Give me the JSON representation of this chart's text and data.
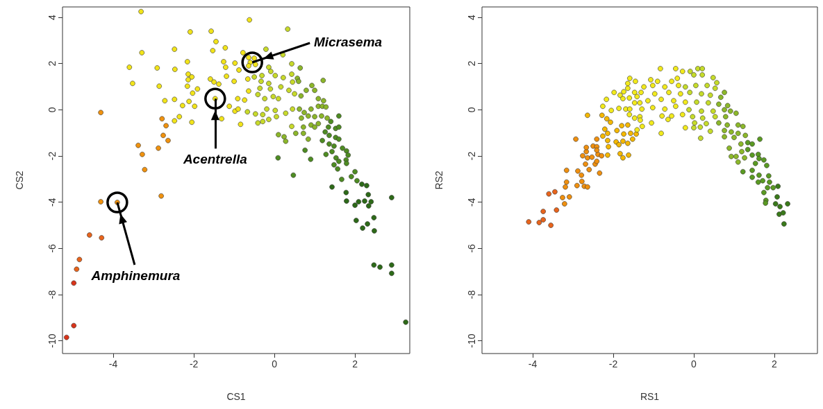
{
  "chart_data": [
    {
      "type": "scatter",
      "xlabel": "CS1",
      "ylabel": "CS2",
      "xlim": [
        -5.26,
        3.36
      ],
      "ylim": [
        -10.55,
        4.45
      ],
      "xticks": [
        -4,
        -2,
        0,
        2
      ],
      "yticks": [
        -10,
        -8,
        -6,
        -4,
        -2,
        0,
        2,
        4
      ],
      "grid": false,
      "marker": "circle",
      "annotations": [
        {
          "text": "Micrasema",
          "x": -0.55,
          "y": 2.05
        },
        {
          "text": "Acentrella",
          "x": -1.47,
          "y": 0.48
        },
        {
          "text": "Amphinemura",
          "x": -3.9,
          "y": -4.01
        }
      ],
      "series": [
        {
          "color": "#d9341a",
          "x": [
            -4.98,
            -5.16,
            -4.98
          ],
          "values": [
            -9.34,
            -9.85,
            -7.5
          ]
        },
        {
          "color": "#e8641c",
          "x": [
            -4.59,
            -4.29,
            -4.84,
            -4.91
          ],
          "values": [
            -5.42,
            -5.54,
            -6.48,
            -6.9
          ]
        },
        {
          "color": "#f0920f",
          "x": [
            -2.81,
            -4.31,
            -3.9,
            -4.31,
            -3.22,
            -3.28,
            -2.88,
            -3.38,
            -2.64,
            -2.76,
            -2.69,
            -2.79
          ],
          "values": [
            -3.73,
            -3.98,
            -4.01,
            -0.12,
            -2.59,
            -1.93,
            -1.66,
            -1.54,
            -1.33,
            -1.11,
            -0.69,
            -0.39
          ]
        },
        {
          "color": "#f2e41a",
          "x": [
            -3.31,
            -2.09,
            -1.57,
            -1.45,
            -2.48,
            -1.53,
            -1.22,
            -3.29,
            -3.6,
            -2.91,
            -2.47,
            -2.16,
            -1.26,
            -1.21,
            -0.98,
            -3.52,
            -2.86,
            -2.14,
            -2.05,
            -2.14,
            -2.16,
            -1.91,
            -1.59,
            -1.5,
            -1.38,
            -1.19,
            -1.0,
            -2.03,
            -2.72,
            -2.48,
            -2.12,
            -2.28,
            -1.98,
            -1.47,
            -1.12,
            -0.98,
            -1.31,
            -2.36,
            -2.48,
            -2.05,
            -0.62,
            -0.78,
            -0.64,
            -0.5,
            -0.6,
            -0.47,
            -0.64,
            -0.88,
            -0.66,
            -0.64,
            -0.91,
            -0.74,
            -0.9,
            -0.84
          ],
          "values": [
            4.25,
            3.37,
            3.4,
            2.95,
            2.62,
            2.56,
            2.68,
            2.47,
            1.84,
            1.81,
            1.75,
            2.08,
            2.08,
            1.84,
            2.02,
            1.14,
            1.02,
            1.54,
            1.42,
            1.3,
            1.02,
            0.9,
            1.33,
            1.2,
            1.11,
            1.45,
            1.23,
            0.72,
            0.39,
            0.45,
            0.36,
            0.18,
            0.15,
            0.48,
            0.15,
            -0.06,
            -0.39,
            -0.3,
            -0.48,
            -0.54,
            3.89,
            2.47,
            2.26,
            2.23,
            2.05,
            1.96,
            1.9,
            1.72,
            1.33,
            0.81,
            0.48,
            0.42,
            0.03,
            -0.63
          ]
        },
        {
          "color": "#c8da2a",
          "x": [
            0.33,
            -0.21,
            0.21,
            -0.14,
            0.43,
            -0.09,
            0.02,
            -0.31,
            -0.5,
            0.43,
            0.22,
            -0.33,
            -0.14,
            0.16,
            0.45,
            -0.36,
            -0.1,
            -0.41,
            -0.24,
            -0.03,
            0.1,
            0.36,
            0.5,
            -0.67,
            -0.47,
            -0.29,
            -0.19,
            0.02,
            0.28,
            0.45,
            -0.41,
            -0.29,
            -0.14,
            0.05,
            0.43
          ],
          "values": [
            3.49,
            2.62,
            2.38,
            1.84,
            1.99,
            1.66,
            1.48,
            1.48,
            1.42,
            1.54,
            1.39,
            1.23,
            1.14,
            0.99,
            1.2,
            0.93,
            0.9,
            0.66,
            0.48,
            0.57,
            0.48,
            0.84,
            0.69,
            -0.09,
            -0.18,
            -0.21,
            0.03,
            -0.03,
            -0.15,
            0.03,
            -0.57,
            -0.51,
            -0.42,
            -0.3,
            -0.72
          ]
        },
        {
          "color": "#8cb62a",
          "x": [
            0.64,
            1.21,
            0.57,
            0.6,
            0.93,
            0.66,
            0.79,
            1.0,
            1.09,
            1.22,
            0.62,
            0.74,
            0.91,
            1.09,
            1.19,
            1.28,
            0.84,
            1.0,
            0.67,
            1.17,
            1.31,
            1.09,
            0.91,
            1.0,
            0.72,
            0.53,
            0.72,
            0.84,
            0.1,
            0.24,
            0.28
          ],
          "values": [
            1.81,
            1.27,
            1.36,
            1.23,
            1.05,
            0.6,
            0.84,
            0.84,
            0.48,
            0.39,
            0.03,
            -0.12,
            0.03,
            0.15,
            0.15,
            0.12,
            -0.27,
            -0.3,
            -0.36,
            -0.27,
            -0.36,
            -0.6,
            -0.66,
            -0.75,
            -0.75,
            -1.02,
            -1.02,
            -1.27,
            -1.08,
            -1.17,
            -1.36
          ]
        },
        {
          "color": "#4e8c22",
          "x": [
            1.4,
            1.6,
            1.34,
            1.52,
            1.6,
            1.26,
            1.36,
            1.52,
            1.6,
            1.19,
            1.36,
            1.48,
            1.69,
            1.79,
            1.83,
            1.28,
            1.43,
            1.53,
            1.6,
            1.78,
            1.79,
            1.48,
            1.57,
            0.76,
            0.9,
            0.09,
            0.47,
            2.0,
            1.91,
            2.05,
            1.67
          ],
          "values": [
            -0.51,
            -0.27,
            -0.75,
            -0.81,
            -0.75,
            -0.96,
            -1.11,
            -1.2,
            -1.27,
            -1.33,
            -1.48,
            -1.57,
            -1.66,
            -1.78,
            -1.96,
            -1.93,
            -1.81,
            -2.08,
            -2.23,
            -2.17,
            -2.32,
            -2.38,
            -2.56,
            -1.75,
            -2.14,
            -2.08,
            -2.83,
            -2.68,
            -2.89,
            -3.07,
            -3.01
          ]
        },
        {
          "color": "#2d6a18",
          "x": [
            2.17,
            2.29,
            1.43,
            1.78,
            1.79,
            2.0,
            2.09,
            2.24,
            2.34,
            2.4,
            2.33,
            2.91,
            2.03,
            2.47,
            2.31,
            2.19,
            2.48,
            2.47,
            2.62,
            2.91,
            2.91,
            3.26
          ],
          "values": [
            -3.22,
            -3.28,
            -3.34,
            -3.58,
            -3.95,
            -4.13,
            -3.98,
            -3.95,
            -4.16,
            -3.98,
            -3.67,
            -3.8,
            -4.79,
            -4.67,
            -4.94,
            -5.12,
            -5.24,
            -6.72,
            -6.81,
            -6.72,
            -7.08,
            -9.19
          ]
        }
      ]
    },
    {
      "type": "scatter",
      "xlabel": "RS1",
      "ylabel": "RS2",
      "xlim": [
        -5.26,
        3.07
      ],
      "ylim": [
        -10.55,
        4.45
      ],
      "xticks": [
        -4,
        -2,
        0,
        2
      ],
      "yticks": [
        -10,
        -8,
        -6,
        -4,
        -2,
        0,
        2,
        4
      ],
      "grid": false,
      "marker": "circle",
      "series": [
        {
          "color": "#e8641c",
          "x": [
            -4.1,
            -3.84,
            -3.74,
            -3.55,
            -3.74,
            -3.41,
            -3.6,
            -3.45
          ],
          "values": [
            -4.85,
            -4.88,
            -4.76,
            -5.0,
            -4.4,
            -4.34,
            -3.64,
            -3.55
          ]
        },
        {
          "color": "#f0900f",
          "x": [
            -3.26,
            -3.09,
            -3.21,
            -3.19,
            -3.16,
            -2.9,
            -2.78,
            -2.72,
            -2.64,
            -3.16,
            -2.88,
            -2.79,
            -2.6,
            -2.34,
            -2.69,
            -2.45,
            -2.41,
            -2.76,
            -2.64,
            -2.53,
            -2.38,
            -2.29,
            -2.67,
            -2.67,
            -2.5,
            -2.41,
            -2.41,
            -2.93,
            -2.41
          ],
          "values": [
            -3.8,
            -3.77,
            -4.07,
            -3.34,
            -3.13,
            -3.28,
            -3.1,
            -3.31,
            -3.34,
            -2.62,
            -2.65,
            -2.83,
            -2.59,
            -2.74,
            -2.35,
            -2.35,
            -2.23,
            -1.99,
            -2.08,
            -2.05,
            -1.93,
            -1.99,
            -1.81,
            -1.63,
            -1.57,
            -1.6,
            -1.75,
            -1.27,
            -1.27
          ]
        },
        {
          "color": "#f5b800",
          "x": [
            -2.26,
            -2.14,
            -2.12,
            -2.14,
            -2.21,
            -2.14,
            -1.91,
            -1.93,
            -1.86,
            -1.76,
            -1.64,
            -1.83,
            -1.76,
            -1.62,
            -1.52,
            -1.74,
            -1.64,
            -1.57,
            -1.43,
            -1.79,
            -2.64,
            -2.28,
            -2.16,
            -2.07
          ],
          "values": [
            -1.14,
            -1.33,
            -1.6,
            -1.96,
            -0.84,
            -1.02,
            -0.9,
            -1.39,
            -1.51,
            -1.36,
            -1.45,
            -1.9,
            -2.08,
            -1.96,
            -1.27,
            -1.05,
            -0.66,
            -1.02,
            -1.05,
            -0.69,
            -0.24,
            -0.24,
            -0.39,
            -0.54
          ]
        },
        {
          "color": "#f2ea1c",
          "x": [
            -2.26,
            -2.17,
            -2.05,
            -1.98,
            -1.86,
            -1.83,
            -1.76,
            -1.74,
            -1.64,
            -1.59,
            -1.64,
            -1.45,
            -1.47,
            -1.6,
            -1.41,
            -1.69,
            -1.59,
            -1.47,
            -1.34,
            -1.29,
            -1.6,
            -1.47,
            -1.34,
            -1.33,
            -1.28,
            -1.41,
            -0.83,
            -0.45,
            -0.28,
            -0.41,
            -0.55,
            -0.9,
            -1.07,
            -1.24,
            -1.02,
            -0.72,
            -0.38,
            -1.31,
            -0.97,
            -0.62,
            -0.33,
            -1.14,
            -0.81,
            -0.5,
            -0.21,
            -1.02,
            -0.72,
            -0.45,
            -0.79,
            -0.55,
            -0.28,
            -1.05,
            -0.64,
            -0.81,
            -0.21
          ],
          "values": [
            0.15,
            0.45,
            -0.03,
            0.75,
            0.06,
            0.63,
            0.48,
            0.78,
            0.93,
            1.36,
            1.14,
            1.23,
            0.75,
            0.51,
            0.57,
            0.03,
            0.03,
            0.3,
            0.3,
            0.03,
            -0.21,
            -0.36,
            -0.3,
            -0.45,
            -0.72,
            -0.87,
            1.78,
            1.78,
            1.66,
            1.36,
            1.23,
            1.23,
            1.3,
            0.99,
            1.05,
            0.99,
            1.05,
            0.75,
            0.69,
            0.75,
            0.69,
            0.39,
            0.45,
            0.39,
            0.33,
            0.09,
            0.03,
            0.15,
            -0.27,
            -0.27,
            -0.21,
            -0.57,
            -0.42,
            -1.02,
            -0.78
          ]
        },
        {
          "color": "#c6dc2a",
          "x": [
            -0.09,
            0.1,
            0.21,
            0.21,
            0.0,
            0.48,
            -0.21,
            0.05,
            0.33,
            0.57,
            0.53,
            -0.1,
            0.19,
            0.41,
            0.07,
            0.36,
            -0.12,
            0.19,
            0.48,
            -0.03,
            0.22,
            0.53,
            0.02,
            0.31,
            0.0,
            0.16,
            0.41,
            0.17
          ],
          "values": [
            1.66,
            1.78,
            1.78,
            1.51,
            1.51,
            1.39,
            0.99,
            1.05,
            1.05,
            1.17,
            0.93,
            0.75,
            0.69,
            0.63,
            0.33,
            0.3,
            0.0,
            -0.06,
            -0.06,
            -0.3,
            -0.36,
            -0.3,
            -0.57,
            -0.6,
            -0.78,
            -0.75,
            -0.93,
            -1.23
          ]
        },
        {
          "color": "#8cb82a",
          "x": [
            0.76,
            0.67,
            0.62,
            0.84,
            0.76,
            0.91,
            0.79,
            1.05,
            0.62,
            0.83,
            1.1,
            1.22,
            0.76,
            0.93,
            1.1,
            1.28,
            0.76,
            1.0,
            1.17,
            0.88,
            0.93,
            1.05,
            1.1,
            1.19,
            1.26
          ],
          "values": [
            0.75,
            0.54,
            0.24,
            0.18,
            0.0,
            -0.06,
            -0.3,
            -0.15,
            -0.57,
            -0.66,
            -0.66,
            -0.72,
            -0.9,
            -0.96,
            -1.02,
            -1.11,
            -1.17,
            -1.2,
            -1.48,
            -1.66,
            -2.02,
            -2.02,
            -2.26,
            -1.81,
            -2.08
          ]
        },
        {
          "color": "#5a9a22",
          "x": [
            1.34,
            1.45,
            1.64,
            1.34,
            1.45,
            1.6,
            1.62,
            1.74,
            1.53,
            1.81,
            1.22,
            1.45,
            1.62,
            1.45,
            1.6,
            1.71,
            1.86,
            1.88,
            1.83,
            1.97,
            1.74,
            1.79,
            1.78
          ],
          "values": [
            -1.42,
            -1.48,
            -1.27,
            -1.72,
            -1.96,
            -1.93,
            -2.11,
            -2.17,
            -2.32,
            -2.41,
            -2.68,
            -2.62,
            -2.83,
            -2.92,
            -3.13,
            -3.07,
            -2.86,
            -3.13,
            -3.37,
            -3.37,
            -3.58,
            -3.92,
            -4.04
          ]
        },
        {
          "color": "#3a7a1a",
          "x": [
            2.09,
            2.07,
            2.03,
            2.14,
            2.33,
            2.12,
            2.22,
            2.24
          ],
          "values": [
            -3.31,
            -3.77,
            -4.07,
            -4.19,
            -4.07,
            -4.52,
            -4.46,
            -4.94
          ]
        }
      ]
    }
  ]
}
